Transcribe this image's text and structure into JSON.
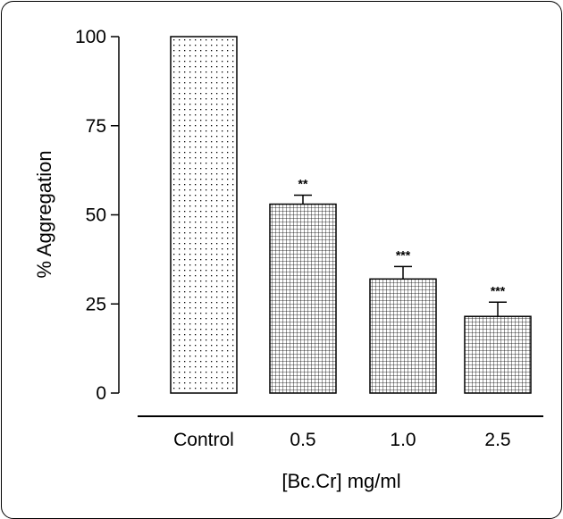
{
  "chart_data": {
    "type": "bar",
    "title": "",
    "xlabel": "[Bc.Cr] mg/ml",
    "ylabel": "% Aggregation",
    "categories": [
      "Control",
      "0.5",
      "1.0",
      "2.5"
    ],
    "values": [
      100,
      53,
      32,
      21.5
    ],
    "errors": [
      0,
      2.5,
      3.5,
      4
    ],
    "significance": [
      "",
      "**",
      "***",
      "***"
    ],
    "patterns": [
      "dots",
      "grid",
      "grid",
      "grid"
    ],
    "ylim": [
      0,
      100
    ],
    "yticks": [
      0,
      25,
      50,
      75,
      100
    ],
    "grid": false,
    "legend": "none"
  }
}
